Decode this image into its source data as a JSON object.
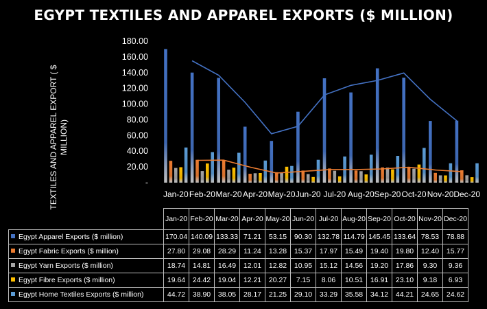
{
  "chart_data": {
    "type": "bar",
    "title": "EGYPT TEXTILES AND APPAREL EXPORTS ($ MILLION)",
    "xlabel": "",
    "ylabel": "TEXTILES AND APPAREL EXPORT ( $ MILLION)",
    "ylim": [
      0,
      180
    ],
    "yticks": [
      "-",
      "20.00",
      "40.00",
      "60.00",
      "80.00",
      "100.00",
      "120.00",
      "140.00",
      "160.00",
      "180.00"
    ],
    "grid": false,
    "categories": [
      "Jan-20",
      "Feb-20",
      "Mar-20",
      "Apr-20",
      "May-20",
      "Jun-20",
      "Jul-20",
      "Aug-20",
      "Sep-20",
      "Oct-20",
      "Nov-20",
      "Dec-20"
    ],
    "series": [
      {
        "name": "Egypt Apparel Exports ($ million)",
        "color": "#4472c4",
        "values": [
          170.04,
          140.09,
          133.33,
          71.21,
          53.15,
          90.3,
          132.78,
          114.79,
          145.45,
          133.64,
          78.53,
          78.88
        ]
      },
      {
        "name": "Egypt Fabric Exports ($ million)",
        "color": "#ed7d31",
        "values": [
          27.8,
          29.08,
          28.29,
          11.24,
          13.28,
          15.37,
          17.97,
          15.49,
          19.4,
          19.8,
          12.4,
          15.77
        ]
      },
      {
        "name": "Egypt Yarn Exports ($ million)",
        "color": "#a5a5a5",
        "values": [
          18.74,
          14.81,
          16.49,
          12.01,
          12.82,
          10.95,
          15.12,
          14.56,
          19.2,
          17.86,
          9.3,
          9.36
        ]
      },
      {
        "name": "Egypt Fibre Exports ($ million)",
        "color": "#ffc000",
        "values": [
          19.64,
          24.42,
          19.04,
          12.21,
          20.27,
          7.15,
          8.06,
          10.51,
          16.91,
          23.1,
          9.18,
          6.93
        ]
      },
      {
        "name": "Egypt Home Textiles Exports ($ million)",
        "color": "#5b9bd5",
        "values": [
          44.72,
          38.9,
          38.05,
          28.17,
          21.25,
          29.1,
          33.29,
          35.58,
          34.12,
          44.21,
          24.65,
          24.62
        ]
      }
    ],
    "trendlines": [
      {
        "series": "Egypt Apparel Exports ($ million)",
        "type": "moving-average-2",
        "color": "#4472c4"
      },
      {
        "series": "Egypt Fabric Exports ($ million)",
        "type": "moving-average-2",
        "color": "#ed7d31"
      }
    ],
    "legend": "data-table-below",
    "table": {
      "header_labels": [
        "Jan-20",
        "Feb-20",
        "Mar-20",
        "Apr-20",
        "May-20",
        "Jun-20",
        "Jul-20",
        "Aug-20",
        "Sep-20",
        "Oct-20",
        "Nov-20",
        "Dec-20"
      ],
      "rows": [
        {
          "label": "Egypt Apparel Exports ($ million)",
          "values": [
            "170.04",
            "140.09",
            "133.33",
            "71.21",
            "53.15",
            "90.30",
            "132.78",
            "114.79",
            "145.45",
            "133.64",
            "78.53",
            "78.88"
          ]
        },
        {
          "label": "Egypt Fabric Exports ($ million)",
          "values": [
            "27.80",
            "29.08",
            "28.29",
            "11.24",
            "13.28",
            "15.37",
            "17.97",
            "15.49",
            "19.40",
            "19.80",
            "12.40",
            "15.77"
          ]
        },
        {
          "label": "Egypt Yarn Exports ($ million)",
          "values": [
            "18.74",
            "14.81",
            "16.49",
            "12.01",
            "12.82",
            "10.95",
            "15.12",
            "14.56",
            "19.20",
            "17.86",
            "9.30",
            "9.36"
          ]
        },
        {
          "label": "Egypt Fibre Exports ($ million)",
          "values": [
            "19.64",
            "24.42",
            "19.04",
            "12.21",
            "20.27",
            "7.15",
            "8.06",
            "10.51",
            "16.91",
            "23.10",
            "9.18",
            "6.93"
          ]
        },
        {
          "label": "Egypt Home Textiles Exports ($ million)",
          "values": [
            "44.72",
            "38.90",
            "38.05",
            "28.17",
            "21.25",
            "29.10",
            "33.29",
            "35.58",
            "34.12",
            "44.21",
            "24.65",
            "24.62"
          ]
        }
      ]
    }
  }
}
